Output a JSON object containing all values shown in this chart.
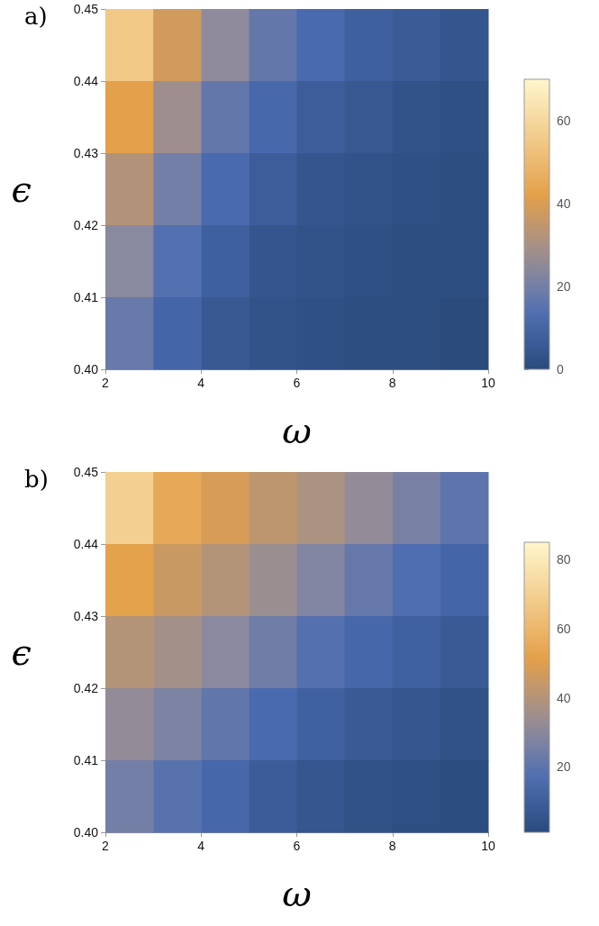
{
  "chart_data": [
    {
      "type": "heatmap",
      "title": "a)",
      "xlabel": "ω",
      "ylabel": "ϵ",
      "xlim": [
        2,
        10
      ],
      "xticks": [
        2,
        4,
        6,
        8,
        10
      ],
      "ylim": [
        0.4,
        0.45
      ],
      "yticks": [
        {
          "value": 0.4,
          "label": "0.40"
        },
        0.41,
        0.42,
        0.43,
        0.44,
        0.45
      ],
      "clim": [
        0,
        70
      ],
      "cticks": [
        0,
        20,
        40,
        60
      ],
      "cells": [
        [
          55,
          38,
          25,
          17,
          12,
          8,
          6,
          4
        ],
        [
          42,
          28,
          17,
          11,
          7,
          5,
          3,
          2
        ],
        [
          32,
          20,
          12,
          7,
          4,
          3,
          2,
          1
        ],
        [
          24,
          14,
          8,
          4,
          3,
          2,
          1,
          1
        ],
        [
          18,
          10,
          5,
          3,
          2,
          1,
          1,
          0
        ]
      ]
    },
    {
      "type": "heatmap",
      "title": "b)",
      "xlabel": "ω",
      "ylabel": "ϵ",
      "xlim": [
        2,
        10
      ],
      "xticks": [
        2,
        4,
        6,
        8,
        10
      ],
      "ylim": [
        0.4,
        0.45
      ],
      "yticks": [
        {
          "value": 0.4,
          "label": "0.40"
        },
        0.41,
        0.42,
        0.43,
        0.44,
        0.45
      ],
      "clim": [
        1,
        85
      ],
      "cticks": [
        20,
        40,
        60,
        80
      ],
      "cells": [
        [
          70,
          55,
          48,
          42,
          38,
          32,
          26,
          20
        ],
        [
          52,
          45,
          40,
          34,
          28,
          22,
          17,
          13
        ],
        [
          40,
          36,
          30,
          24,
          18,
          14,
          11,
          8
        ],
        [
          32,
          27,
          21,
          15,
          11,
          8,
          6,
          4
        ],
        [
          25,
          19,
          14,
          9,
          6,
          4,
          3,
          2
        ]
      ]
    }
  ]
}
